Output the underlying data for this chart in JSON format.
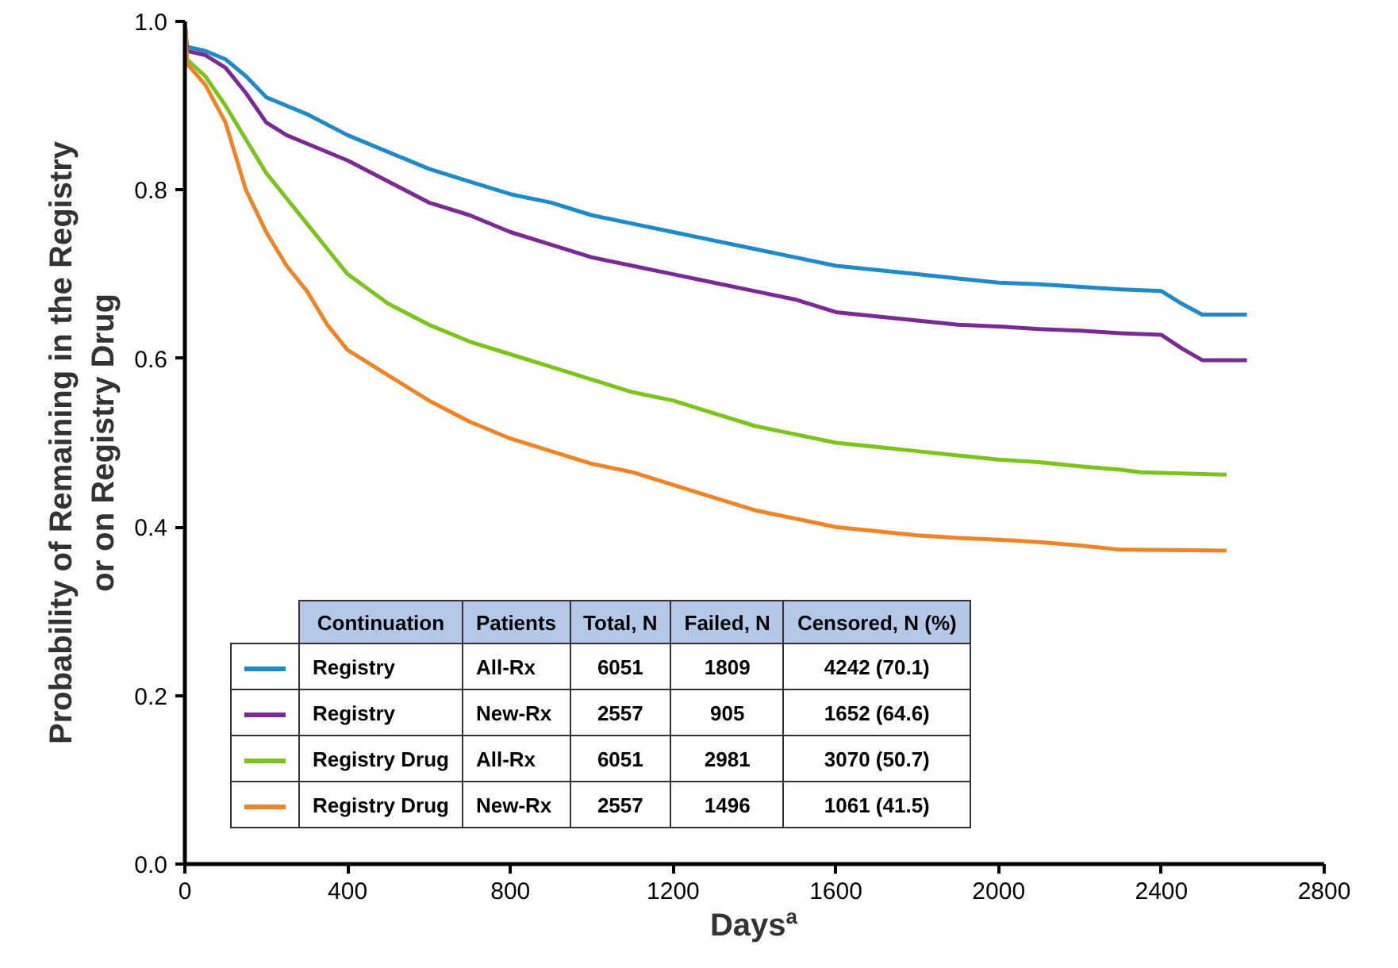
{
  "chart_data": {
    "type": "line",
    "xlabel": "Days$^{a}$",
    "ylabel": "Probability of Remaining in the Registry\nor on Registry Drug",
    "xlim": [
      0,
      2800
    ],
    "ylim": [
      0,
      1
    ],
    "xticks": [
      0,
      400,
      800,
      1200,
      1600,
      2000,
      2400,
      2800
    ],
    "yticks": [
      {
        "value": 0,
        "label": "0.0"
      },
      {
        "value": 0.2,
        "label": "0.2"
      },
      {
        "value": 0.4,
        "label": "0.4"
      },
      {
        "value": 0.6,
        "label": "0.6"
      },
      {
        "value": 0.8,
        "label": "0.8"
      },
      {
        "value": 1,
        "label": "1.0"
      }
    ],
    "grid": false,
    "legend": "bottom",
    "marker": "none",
    "line_style": "solid",
    "series": [
      {
        "name": "Registry",
        "color": "#1f8ac9",
        "x": [
          0,
          5,
          50,
          100,
          150,
          200,
          250,
          300,
          400,
          500,
          600,
          700,
          800,
          900,
          1000,
          1100,
          1200,
          1300,
          1400,
          1500,
          1600,
          1700,
          1800,
          1900,
          2000,
          2100,
          2200,
          2300,
          2400,
          2450,
          2500,
          2610
        ],
        "values": [
          1.0,
          0.97,
          0.965,
          0.955,
          0.935,
          0.91,
          0.9,
          0.89,
          0.865,
          0.845,
          0.825,
          0.81,
          0.795,
          0.785,
          0.77,
          0.76,
          0.75,
          0.74,
          0.73,
          0.72,
          0.71,
          0.705,
          0.7,
          0.695,
          0.69,
          0.688,
          0.685,
          0.682,
          0.68,
          0.665,
          0.652,
          0.652
        ]
      },
      {
        "name": "Registry",
        "color": "#7b2a94",
        "x": [
          0,
          5,
          50,
          100,
          150,
          200,
          250,
          300,
          400,
          500,
          600,
          700,
          800,
          900,
          1000,
          1100,
          1200,
          1300,
          1400,
          1500,
          1600,
          1700,
          1800,
          1900,
          2000,
          2100,
          2200,
          2300,
          2400,
          2450,
          2500,
          2610
        ],
        "values": [
          1.0,
          0.965,
          0.96,
          0.945,
          0.915,
          0.88,
          0.865,
          0.855,
          0.835,
          0.81,
          0.785,
          0.77,
          0.75,
          0.735,
          0.72,
          0.71,
          0.7,
          0.69,
          0.68,
          0.67,
          0.655,
          0.65,
          0.645,
          0.64,
          0.638,
          0.635,
          0.633,
          0.63,
          0.628,
          0.612,
          0.598,
          0.598
        ]
      },
      {
        "name": "Registry Drug",
        "color": "#7ac41c",
        "x": [
          0,
          5,
          50,
          100,
          150,
          200,
          250,
          300,
          350,
          400,
          500,
          600,
          700,
          800,
          900,
          1000,
          1100,
          1200,
          1300,
          1400,
          1500,
          1600,
          1700,
          1800,
          1900,
          2000,
          2100,
          2200,
          2300,
          2350,
          2560
        ],
        "values": [
          1.0,
          0.955,
          0.935,
          0.9,
          0.86,
          0.82,
          0.79,
          0.76,
          0.73,
          0.7,
          0.665,
          0.64,
          0.62,
          0.605,
          0.59,
          0.575,
          0.56,
          0.55,
          0.535,
          0.52,
          0.51,
          0.5,
          0.495,
          0.49,
          0.485,
          0.48,
          0.477,
          0.472,
          0.468,
          0.465,
          0.462
        ]
      },
      {
        "name": "Registry Drug",
        "color": "#ee8426",
        "x": [
          0,
          5,
          50,
          100,
          150,
          200,
          250,
          300,
          350,
          400,
          500,
          600,
          700,
          800,
          900,
          1000,
          1100,
          1200,
          1300,
          1400,
          1500,
          1600,
          1700,
          1800,
          1900,
          2000,
          2100,
          2200,
          2300,
          2560
        ],
        "values": [
          1.0,
          0.95,
          0.925,
          0.88,
          0.8,
          0.75,
          0.71,
          0.68,
          0.64,
          0.61,
          0.58,
          0.55,
          0.525,
          0.505,
          0.49,
          0.475,
          0.465,
          0.45,
          0.435,
          0.42,
          0.41,
          0.4,
          0.395,
          0.39,
          0.387,
          0.385,
          0.382,
          0.378,
          0.373,
          0.372
        ]
      }
    ],
    "annotations": [
      "Continuation",
      "Patients",
      "Total, N",
      "Failed, N",
      "Censored, N (%)",
      "All-Rx",
      "6051",
      "1809",
      "4242  (70.1)",
      "New-Rx",
      "2557",
      "905",
      "1652  (64.6)",
      "All-Rx",
      "6051",
      "2981",
      "3070  (50.7)",
      "New-Rx",
      "2557",
      "1496",
      "1061  (41.5)"
    ]
  }
}
